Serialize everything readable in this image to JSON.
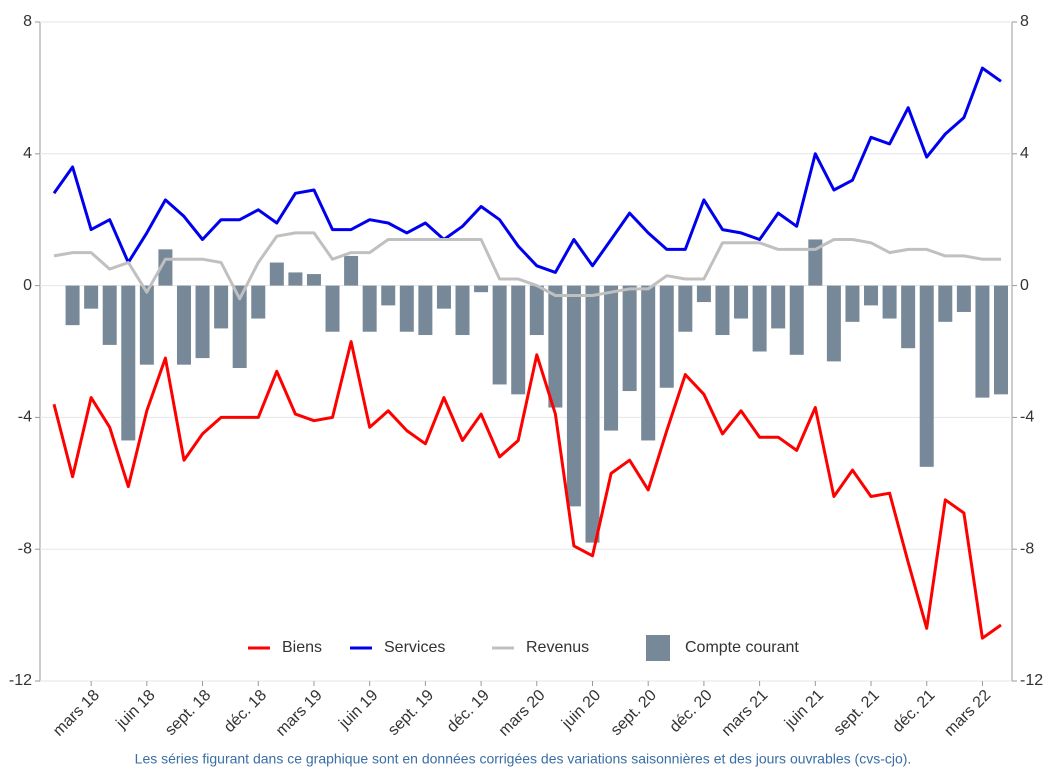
{
  "chart_data": {
    "type": "combo",
    "categories": [
      null,
      null,
      "mars 18",
      null,
      null,
      "juin 18",
      null,
      null,
      "sept. 18",
      null,
      null,
      "déc. 18",
      null,
      null,
      "mars 19",
      null,
      null,
      "juin 19",
      null,
      null,
      "sept. 19",
      null,
      null,
      "déc. 19",
      null,
      null,
      "mars 20",
      null,
      null,
      "juin 20",
      null,
      null,
      "sept. 20",
      null,
      null,
      "déc. 20",
      null,
      null,
      "mars 21",
      null,
      null,
      "juin 21",
      null,
      null,
      "sept. 21",
      null,
      null,
      "déc. 21",
      null,
      null,
      "mars 22",
      null
    ],
    "series": [
      {
        "name": "Biens",
        "type": "line",
        "color": "#ff0000",
        "values": [
          -3.6,
          -5.8,
          -3.4,
          -4.3,
          -6.1,
          -3.8,
          -2.2,
          -5.3,
          -4.5,
          -4.0,
          -4.0,
          -4.0,
          -2.6,
          -3.9,
          -4.1,
          -4.0,
          -1.7,
          -4.3,
          -3.8,
          -4.4,
          -4.8,
          -3.4,
          -4.7,
          -3.9,
          -5.2,
          -4.7,
          -2.1,
          -3.9,
          -7.9,
          -8.2,
          -5.7,
          -5.3,
          -6.2,
          -4.4,
          -2.7,
          -3.3,
          -4.5,
          -3.8,
          -4.6,
          -4.6,
          -5.0,
          -3.7,
          -6.4,
          -5.6,
          -6.4,
          -6.3,
          -8.4,
          -10.4,
          -6.5,
          -6.9,
          -10.7,
          -10.3
        ]
      },
      {
        "name": "Services",
        "type": "line",
        "color": "#0000ee",
        "values": [
          2.8,
          3.6,
          1.7,
          2.0,
          0.7,
          1.6,
          2.6,
          2.1,
          1.4,
          2.0,
          2.0,
          2.3,
          1.9,
          2.8,
          2.9,
          1.7,
          1.7,
          2.0,
          1.9,
          1.6,
          1.9,
          1.4,
          1.8,
          2.4,
          2.0,
          1.2,
          0.6,
          0.4,
          1.4,
          0.6,
          1.4,
          2.2,
          1.6,
          1.1,
          1.1,
          2.6,
          1.7,
          1.6,
          1.4,
          2.2,
          1.8,
          4.0,
          2.9,
          3.2,
          4.5,
          4.3,
          5.4,
          3.9,
          4.6,
          5.1,
          6.6,
          6.2
        ]
      },
      {
        "name": "Revenus",
        "type": "line",
        "color": "#c0c0c0",
        "values": [
          0.9,
          1.0,
          1.0,
          0.5,
          0.7,
          -0.2,
          0.8,
          0.8,
          0.8,
          0.7,
          -0.4,
          0.7,
          1.5,
          1.6,
          1.6,
          0.8,
          1.0,
          1.0,
          1.4,
          1.4,
          1.4,
          1.4,
          1.4,
          1.4,
          0.2,
          0.2,
          0.0,
          -0.3,
          -0.3,
          -0.3,
          -0.2,
          -0.1,
          -0.1,
          0.3,
          0.2,
          0.2,
          1.3,
          1.3,
          1.3,
          1.1,
          1.1,
          1.1,
          1.4,
          1.4,
          1.3,
          1.0,
          1.1,
          1.1,
          0.9,
          0.9,
          0.8,
          0.8
        ]
      },
      {
        "name": "Compte courant",
        "type": "bar",
        "color": "#778899",
        "values": [
          null,
          -1.2,
          -0.7,
          -1.8,
          -4.7,
          -2.4,
          1.1,
          -2.4,
          -2.2,
          -1.3,
          -2.5,
          -1.0,
          0.7,
          0.4,
          0.35,
          -1.4,
          0.9,
          -1.4,
          -0.6,
          -1.4,
          -1.5,
          -0.7,
          -1.5,
          -0.2,
          -3.0,
          -3.3,
          -1.5,
          -3.7,
          -6.7,
          -7.8,
          -4.4,
          -3.2,
          -4.7,
          -3.1,
          -1.4,
          -0.5,
          -1.5,
          -1.0,
          -2.0,
          -1.3,
          -2.1,
          1.4,
          -2.3,
          -1.1,
          -0.6,
          -1.0,
          -1.9,
          -5.5,
          -1.1,
          -0.8,
          -3.4,
          -3.3
        ]
      }
    ],
    "ylim": [
      -12,
      8
    ],
    "yticks": [
      -12,
      -8,
      -4,
      0,
      4,
      8
    ],
    "y2lim": [
      -12,
      8
    ],
    "y2ticks": [
      -12,
      -8,
      -4,
      0,
      4,
      8
    ],
    "grid": true,
    "footnote": "Les séries figurant dans ce graphique sont en données corrigées des variations saisonnières et des jours ouvrables (cvs-cjo)."
  }
}
